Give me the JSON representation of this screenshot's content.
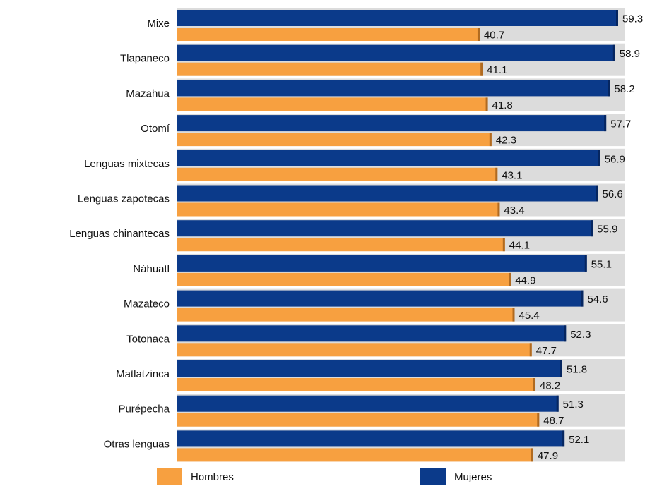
{
  "chart_data": {
    "type": "bar",
    "orientation": "horizontal",
    "categories": [
      "Mixe",
      "Tlapaneco",
      "Mazahua",
      "Otomí",
      "Lenguas mixtecas",
      "Lenguas zapotecas",
      "Lenguas chinantecas",
      "Náhuatl",
      "Mazateco",
      "Totonaca",
      "Matlatzinca",
      "Purépecha",
      "Otras lenguas"
    ],
    "series": [
      {
        "name": "Hombres",
        "color": "#f7a040",
        "values": [
          40.7,
          41.1,
          41.8,
          42.3,
          43.1,
          43.4,
          44.1,
          44.9,
          45.4,
          47.7,
          48.2,
          48.7,
          47.9
        ]
      },
      {
        "name": "Mujeres",
        "color": "#0b3a8a",
        "values": [
          59.3,
          58.9,
          58.2,
          57.7,
          56.9,
          56.6,
          55.9,
          55.1,
          54.6,
          52.3,
          51.8,
          51.3,
          52.1
        ]
      }
    ]
  }
}
